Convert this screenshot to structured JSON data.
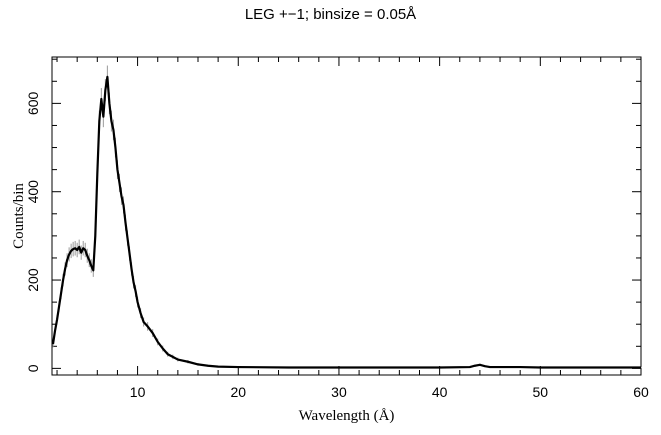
{
  "chart_data": {
    "type": "line",
    "title": "LEG +−1; binsize = 0.05Å",
    "xlabel": "Wavelength (Å)",
    "ylabel": "Counts/bin",
    "xlim": [
      1.5,
      60
    ],
    "ylim": [
      -15,
      705
    ],
    "xticks": [
      10,
      20,
      30,
      40,
      50,
      60
    ],
    "yticks": [
      0,
      200,
      400,
      600
    ],
    "grid": false,
    "series": [
      {
        "line_color": "#000000",
        "error_color": "#9a9a9a",
        "points": [
          [
            1.6,
            55
          ],
          [
            1.8,
            85
          ],
          [
            2.0,
            110
          ],
          [
            2.2,
            140
          ],
          [
            2.4,
            170
          ],
          [
            2.6,
            200
          ],
          [
            2.8,
            225
          ],
          [
            3.0,
            245
          ],
          [
            3.2,
            258
          ],
          [
            3.4,
            266
          ],
          [
            3.6,
            270
          ],
          [
            3.8,
            272
          ],
          [
            4.0,
            268
          ],
          [
            4.2,
            275
          ],
          [
            4.4,
            262
          ],
          [
            4.6,
            272
          ],
          [
            4.8,
            268
          ],
          [
            5.0,
            255
          ],
          [
            5.2,
            245
          ],
          [
            5.4,
            232
          ],
          [
            5.6,
            222
          ],
          [
            5.8,
            300
          ],
          [
            6.0,
            440
          ],
          [
            6.2,
            560
          ],
          [
            6.4,
            610
          ],
          [
            6.6,
            570
          ],
          [
            6.8,
            630
          ],
          [
            7.0,
            660
          ],
          [
            7.2,
            600
          ],
          [
            7.4,
            560
          ],
          [
            7.6,
            540
          ],
          [
            7.8,
            500
          ],
          [
            8.0,
            450
          ],
          [
            8.2,
            420
          ],
          [
            8.4,
            390
          ],
          [
            8.6,
            370
          ],
          [
            8.8,
            330
          ],
          [
            9.0,
            295
          ],
          [
            9.2,
            260
          ],
          [
            9.4,
            225
          ],
          [
            9.6,
            195
          ],
          [
            9.8,
            175
          ],
          [
            10.0,
            150
          ],
          [
            10.3,
            125
          ],
          [
            10.6,
            105
          ],
          [
            11.0,
            95
          ],
          [
            11.5,
            80
          ],
          [
            12.0,
            60
          ],
          [
            12.5,
            45
          ],
          [
            13.0,
            32
          ],
          [
            13.5,
            26
          ],
          [
            14.0,
            20
          ],
          [
            15.0,
            15
          ],
          [
            16.0,
            9
          ],
          [
            17.0,
            6
          ],
          [
            18.0,
            4
          ],
          [
            20.0,
            3
          ],
          [
            25.0,
            2
          ],
          [
            30.0,
            2
          ],
          [
            35.0,
            2
          ],
          [
            40.0,
            2
          ],
          [
            43.0,
            3
          ],
          [
            43.5,
            6
          ],
          [
            44.0,
            8
          ],
          [
            44.5,
            5
          ],
          [
            45.0,
            3
          ],
          [
            48.0,
            3
          ],
          [
            50.0,
            2
          ],
          [
            55.0,
            2
          ],
          [
            60.0,
            2
          ]
        ]
      }
    ]
  }
}
